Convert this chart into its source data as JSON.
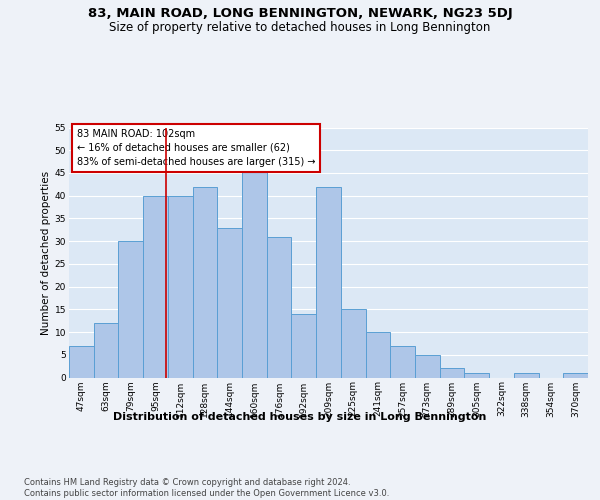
{
  "title": "83, MAIN ROAD, LONG BENNINGTON, NEWARK, NG23 5DJ",
  "subtitle": "Size of property relative to detached houses in Long Bennington",
  "xlabel": "Distribution of detached houses by size in Long Bennington",
  "ylabel": "Number of detached properties",
  "categories": [
    "47sqm",
    "63sqm",
    "79sqm",
    "95sqm",
    "112sqm",
    "128sqm",
    "144sqm",
    "160sqm",
    "176sqm",
    "192sqm",
    "209sqm",
    "225sqm",
    "241sqm",
    "257sqm",
    "273sqm",
    "289sqm",
    "305sqm",
    "322sqm",
    "338sqm",
    "354sqm",
    "370sqm"
  ],
  "values": [
    7,
    12,
    30,
    40,
    40,
    42,
    33,
    46,
    31,
    14,
    42,
    15,
    10,
    7,
    5,
    2,
    1,
    0,
    1,
    0,
    1
  ],
  "bar_color": "#aec6e8",
  "bar_edge_color": "#5a9fd4",
  "background_color": "#eef2f8",
  "plot_bg_color": "#dce8f5",
  "grid_color": "#ffffff",
  "annotation_box_text": "83 MAIN ROAD: 102sqm\n← 16% of detached houses are smaller (62)\n83% of semi-detached houses are larger (315) →",
  "annotation_box_color": "#ffffff",
  "annotation_box_edge_color": "#cc0000",
  "red_line_color": "#cc0000",
  "ylim": [
    0,
    55
  ],
  "yticks": [
    0,
    5,
    10,
    15,
    20,
    25,
    30,
    35,
    40,
    45,
    50,
    55
  ],
  "footer": "Contains HM Land Registry data © Crown copyright and database right 2024.\nContains public sector information licensed under the Open Government Licence v3.0.",
  "title_fontsize": 9.5,
  "subtitle_fontsize": 8.5,
  "xlabel_fontsize": 8,
  "ylabel_fontsize": 7.5,
  "tick_fontsize": 6.5,
  "annotation_fontsize": 7,
  "footer_fontsize": 6
}
